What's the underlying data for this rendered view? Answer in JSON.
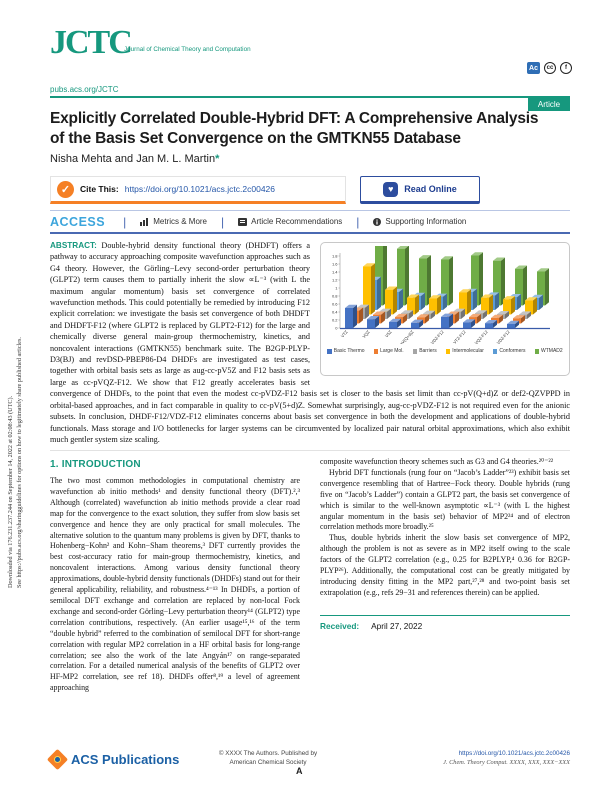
{
  "colors": {
    "brand_teal": "#16987e",
    "accent_orange": "#f58025",
    "link_blue": "#2456a8",
    "access_cyan": "#3ca5dc",
    "rule_blue": "#4a69b2"
  },
  "side_note": {
    "line1": "Downloaded via 176.231.237.244 on September 14, 2022 at 02:08:43 (UTC).",
    "line2": "See https://pubs.acs.org/sharingguidelines for options on how to legitimately share published articles."
  },
  "header": {
    "logo": "JCTC",
    "journal_name": "Journal of Chemical Theory and Computation",
    "site_url": "pubs.acs.org/JCTC",
    "article_badge": "Article",
    "oa_icons": {
      "authorchoice": "Ac",
      "cc": "cc",
      "by": "f"
    }
  },
  "title_block": {
    "title_line1": "Explicitly Correlated Double-Hybrid DFT: A Comprehensive Analysis",
    "title_line2": "of the Basis Set Convergence on the GMTKN55 Database",
    "authors": "Nisha Mehta and Jan M. L. Martin",
    "corresponding_mark": "*"
  },
  "cite_bar": {
    "check_glyph": "✓",
    "cite_label": "Cite This:",
    "doi": "https://doi.org/10.1021/acs.jctc.2c00426",
    "read_icon_glyph": "♥",
    "read_online": "Read Online"
  },
  "access_bar": {
    "access": "ACCESS",
    "separator": "|",
    "items": [
      "Metrics & More",
      "Article Recommendations",
      "Supporting Information"
    ]
  },
  "abstract": {
    "label": "ABSTRACT:",
    "text": "Double-hybrid density functional theory (DHDFT) offers a pathway to accuracy approaching composite wavefunction approaches such as G4 theory. However, the Görling−Levy second-order perturbation theory (GLPT2) term causes them to partially inherit the slow ∝L⁻³ (with L the maximum angular momentum) basis set convergence of correlated wavefunction methods. This could potentially be remedied by introducing F12 explicit correlation: we investigate the basis set convergence of both DHDFT and DHDFT-F12 (where GLPT2 is replaced by GLPT2-F12) for the large and chemically diverse general main-group thermochemistry, kinetics, and noncovalent interactions (GMTKN55) benchmark suite. The B2GP-PLYP-D3(BJ) and revDSD-PBEP86-D4 DHDFs are investigated as test cases, together with orbital basis sets as large as aug-cc-pV5Z and F12 basis sets as large as cc-pVQZ-F12. We show that F12 greatly accelerates basis set convergence of DHDFs, to the point that even the modest cc-pVDZ-F12 basis set is closer to the basis set limit than cc-pV(Q+d)Z or def2-QZVPPD in orbital-based approaches, and in fact comparable in quality to cc-pV(5+d)Z. Somewhat surprisingly, aug-cc-pVDZ-F12 is not required even for the anionic subsets. In conclusion, DHDF-F12/VDZ-F12 eliminates concerns about basis set convergence in both the development and applications of double-hybrid functionals. Mass storage and I/O bottlenecks for larger systems can be circumvented by localized pair natural orbital approximations, which also exhibit much gentler system size scaling."
  },
  "chart_data": {
    "type": "bar",
    "style": "3d-column",
    "title": "",
    "xlabel": "",
    "ylabel": "",
    "ylim": [
      0,
      1.8
    ],
    "yticks": [
      0,
      0.2,
      0.4,
      0.6,
      0.8,
      1,
      1.2,
      1.4,
      1.6,
      1.8
    ],
    "grid": false,
    "legend_position": "bottom",
    "categories": [
      "VTZ",
      "VQZ",
      "V5Z",
      "haV(Q+d)Z",
      "VDZ-F12",
      "VTZ-F12",
      "VQZ-F12",
      "PNO-VDZ-F12"
    ],
    "series": [
      {
        "name": "Basic Thermo",
        "color": "#4472C4",
        "values": [
          0.5,
          0.22,
          0.15,
          0.13,
          0.28,
          0.14,
          0.12,
          0.1
        ]
      },
      {
        "name": "Large Mol.",
        "color": "#ED7D31",
        "values": [
          0.32,
          0.22,
          0.16,
          0.15,
          0.22,
          0.16,
          0.14,
          0.13
        ]
      },
      {
        "name": "Barriers",
        "color": "#A5A5A5",
        "values": [
          0.28,
          0.18,
          0.14,
          0.13,
          0.18,
          0.14,
          0.12,
          0.11
        ]
      },
      {
        "name": "Intermolecular",
        "color": "#FFC000",
        "values": [
          1.2,
          0.62,
          0.42,
          0.4,
          0.55,
          0.42,
          0.38,
          0.35
        ]
      },
      {
        "name": "Conformers",
        "color": "#5B9BD5",
        "values": [
          0.75,
          0.45,
          0.35,
          0.33,
          0.45,
          0.36,
          0.32,
          0.3
        ]
      },
      {
        "name": "WTMAD2",
        "color": "#70AD47",
        "values": [
          1.8,
          1.42,
          1.18,
          1.15,
          1.25,
          1.12,
          0.92,
          0.85
        ]
      }
    ]
  },
  "intro": {
    "heading": "1. INTRODUCTION",
    "left_paragraph": "The two most common methodologies in computational chemistry are wavefunction ab initio methods¹ and density functional theory (DFT).²,³ Although (correlated) wavefunction ab initio methods provide a clear road map for the convergence to the exact solution, they suffer from slow basis set convergence and hence they are only practical for small molecules. The alternative solution to the quantum many problems is given by DFT, thanks to Hohenberg−Kohn² and Kohn−Sham theorems,³ DFT currently provides the best cost-accuracy ratio for main-group thermochemistry, kinetics, and noncovalent interactions. Among various density functional theory approximations, double-hybrid density functionals (DHDFs) stand out for their general applicability, reliability, and robustness.⁴⁻¹³ In DHDFs, a portion of semilocal DFT exchange and correlation are replaced by non-local Fock exchange and second-order Görling−Levy perturbation theory¹⁴ (GLPT2) type correlation contributions, respectively. (An earlier usage¹⁵,¹⁶ of the term “double hybrid” referred to the combination of semilocal DFT for short-range correlation with regular MP2 correlation in a HF orbital basis for long-range correlation; see also the work of the late Angyán¹⁷ on range-separated correlation. For a detailed numerical analysis of the benefits of GLPT2 over HF-MP2 correlation, see ref 18). DHDFs offer⁸,¹⁹ a level of agreement approaching",
    "right_paragraphs": [
      "composite wavefunction theory schemes such as G3 and G4 theories.²⁰⁻²²",
      "Hybrid DFT functionals (rung four on “Jacob’s Ladder”²³) exhibit basis set convergence resembling that of Hartree−Fock theory. Double hybrids (rung five on “Jacob’s Ladder”) contain a GLPT2 part, the basis set convergence of which is similar to the well-known asymptotic ∝L⁻³ (with L the highest angular momentum in the basis set) behavior of MP2²⁴ and of electron correlation methods more broadly.²⁵",
      "Thus, double hybrids inherit the slow basis set convergence of MP2, although the problem is not as severe as in MP2 itself owing to the scale factors of the GLPT2 correlation (e.g., 0.25 for B2PLYP,⁴ 0.36 for B2GP-PLYP²⁶). Additionally, the computational cost can be greatly mitigated by introducing density fitting in the MP2 part,²⁷,²⁸ and two-point basis set extrapolation (e.g., refs 29−31 and references therein) can be applied."
    ],
    "received_label": "Received:",
    "received_date": "April 27, 2022"
  },
  "footer": {
    "publisher_logo": "ACS Publications",
    "copyright_line1": "© XXXX The Authors. Published by",
    "copyright_line2": "American Chemical Society",
    "page_label": "A",
    "doi": "https://doi.org/10.1021/acs.jctc.2c00426",
    "citation": "J. Chem. Theory Comput. XXXX, XXX, XXX−XXX"
  }
}
